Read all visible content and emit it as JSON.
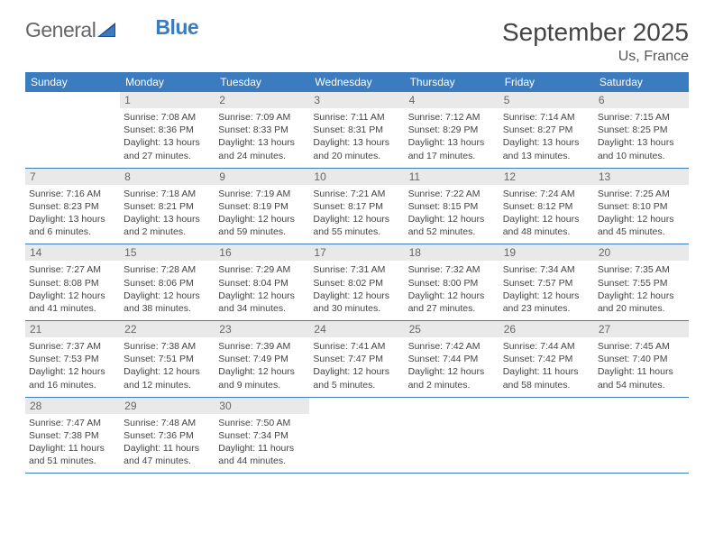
{
  "logo": {
    "part1": "General",
    "part2": "Blue"
  },
  "month_title": "September 2025",
  "location": "Us, France",
  "colors": {
    "header_bg": "#3b7bbf",
    "header_text": "#ffffff",
    "daynum_bg": "#e9e9e9",
    "daynum_text": "#666666",
    "row_border": "#3b7bbf",
    "body_text": "#444444",
    "background": "#ffffff"
  },
  "weekday_labels": [
    "Sunday",
    "Monday",
    "Tuesday",
    "Wednesday",
    "Thursday",
    "Friday",
    "Saturday"
  ],
  "weeks": [
    [
      {
        "blank": true
      },
      {
        "day": "1",
        "sunrise": "Sunrise: 7:08 AM",
        "sunset": "Sunset: 8:36 PM",
        "daylight1": "Daylight: 13 hours",
        "daylight2": "and 27 minutes."
      },
      {
        "day": "2",
        "sunrise": "Sunrise: 7:09 AM",
        "sunset": "Sunset: 8:33 PM",
        "daylight1": "Daylight: 13 hours",
        "daylight2": "and 24 minutes."
      },
      {
        "day": "3",
        "sunrise": "Sunrise: 7:11 AM",
        "sunset": "Sunset: 8:31 PM",
        "daylight1": "Daylight: 13 hours",
        "daylight2": "and 20 minutes."
      },
      {
        "day": "4",
        "sunrise": "Sunrise: 7:12 AM",
        "sunset": "Sunset: 8:29 PM",
        "daylight1": "Daylight: 13 hours",
        "daylight2": "and 17 minutes."
      },
      {
        "day": "5",
        "sunrise": "Sunrise: 7:14 AM",
        "sunset": "Sunset: 8:27 PM",
        "daylight1": "Daylight: 13 hours",
        "daylight2": "and 13 minutes."
      },
      {
        "day": "6",
        "sunrise": "Sunrise: 7:15 AM",
        "sunset": "Sunset: 8:25 PM",
        "daylight1": "Daylight: 13 hours",
        "daylight2": "and 10 minutes."
      }
    ],
    [
      {
        "day": "7",
        "sunrise": "Sunrise: 7:16 AM",
        "sunset": "Sunset: 8:23 PM",
        "daylight1": "Daylight: 13 hours",
        "daylight2": "and 6 minutes."
      },
      {
        "day": "8",
        "sunrise": "Sunrise: 7:18 AM",
        "sunset": "Sunset: 8:21 PM",
        "daylight1": "Daylight: 13 hours",
        "daylight2": "and 2 minutes."
      },
      {
        "day": "9",
        "sunrise": "Sunrise: 7:19 AM",
        "sunset": "Sunset: 8:19 PM",
        "daylight1": "Daylight: 12 hours",
        "daylight2": "and 59 minutes."
      },
      {
        "day": "10",
        "sunrise": "Sunrise: 7:21 AM",
        "sunset": "Sunset: 8:17 PM",
        "daylight1": "Daylight: 12 hours",
        "daylight2": "and 55 minutes."
      },
      {
        "day": "11",
        "sunrise": "Sunrise: 7:22 AM",
        "sunset": "Sunset: 8:15 PM",
        "daylight1": "Daylight: 12 hours",
        "daylight2": "and 52 minutes."
      },
      {
        "day": "12",
        "sunrise": "Sunrise: 7:24 AM",
        "sunset": "Sunset: 8:12 PM",
        "daylight1": "Daylight: 12 hours",
        "daylight2": "and 48 minutes."
      },
      {
        "day": "13",
        "sunrise": "Sunrise: 7:25 AM",
        "sunset": "Sunset: 8:10 PM",
        "daylight1": "Daylight: 12 hours",
        "daylight2": "and 45 minutes."
      }
    ],
    [
      {
        "day": "14",
        "sunrise": "Sunrise: 7:27 AM",
        "sunset": "Sunset: 8:08 PM",
        "daylight1": "Daylight: 12 hours",
        "daylight2": "and 41 minutes."
      },
      {
        "day": "15",
        "sunrise": "Sunrise: 7:28 AM",
        "sunset": "Sunset: 8:06 PM",
        "daylight1": "Daylight: 12 hours",
        "daylight2": "and 38 minutes."
      },
      {
        "day": "16",
        "sunrise": "Sunrise: 7:29 AM",
        "sunset": "Sunset: 8:04 PM",
        "daylight1": "Daylight: 12 hours",
        "daylight2": "and 34 minutes."
      },
      {
        "day": "17",
        "sunrise": "Sunrise: 7:31 AM",
        "sunset": "Sunset: 8:02 PM",
        "daylight1": "Daylight: 12 hours",
        "daylight2": "and 30 minutes."
      },
      {
        "day": "18",
        "sunrise": "Sunrise: 7:32 AM",
        "sunset": "Sunset: 8:00 PM",
        "daylight1": "Daylight: 12 hours",
        "daylight2": "and 27 minutes."
      },
      {
        "day": "19",
        "sunrise": "Sunrise: 7:34 AM",
        "sunset": "Sunset: 7:57 PM",
        "daylight1": "Daylight: 12 hours",
        "daylight2": "and 23 minutes."
      },
      {
        "day": "20",
        "sunrise": "Sunrise: 7:35 AM",
        "sunset": "Sunset: 7:55 PM",
        "daylight1": "Daylight: 12 hours",
        "daylight2": "and 20 minutes."
      }
    ],
    [
      {
        "day": "21",
        "sunrise": "Sunrise: 7:37 AM",
        "sunset": "Sunset: 7:53 PM",
        "daylight1": "Daylight: 12 hours",
        "daylight2": "and 16 minutes."
      },
      {
        "day": "22",
        "sunrise": "Sunrise: 7:38 AM",
        "sunset": "Sunset: 7:51 PM",
        "daylight1": "Daylight: 12 hours",
        "daylight2": "and 12 minutes."
      },
      {
        "day": "23",
        "sunrise": "Sunrise: 7:39 AM",
        "sunset": "Sunset: 7:49 PM",
        "daylight1": "Daylight: 12 hours",
        "daylight2": "and 9 minutes."
      },
      {
        "day": "24",
        "sunrise": "Sunrise: 7:41 AM",
        "sunset": "Sunset: 7:47 PM",
        "daylight1": "Daylight: 12 hours",
        "daylight2": "and 5 minutes."
      },
      {
        "day": "25",
        "sunrise": "Sunrise: 7:42 AM",
        "sunset": "Sunset: 7:44 PM",
        "daylight1": "Daylight: 12 hours",
        "daylight2": "and 2 minutes."
      },
      {
        "day": "26",
        "sunrise": "Sunrise: 7:44 AM",
        "sunset": "Sunset: 7:42 PM",
        "daylight1": "Daylight: 11 hours",
        "daylight2": "and 58 minutes."
      },
      {
        "day": "27",
        "sunrise": "Sunrise: 7:45 AM",
        "sunset": "Sunset: 7:40 PM",
        "daylight1": "Daylight: 11 hours",
        "daylight2": "and 54 minutes."
      }
    ],
    [
      {
        "day": "28",
        "sunrise": "Sunrise: 7:47 AM",
        "sunset": "Sunset: 7:38 PM",
        "daylight1": "Daylight: 11 hours",
        "daylight2": "and 51 minutes."
      },
      {
        "day": "29",
        "sunrise": "Sunrise: 7:48 AM",
        "sunset": "Sunset: 7:36 PM",
        "daylight1": "Daylight: 11 hours",
        "daylight2": "and 47 minutes."
      },
      {
        "day": "30",
        "sunrise": "Sunrise: 7:50 AM",
        "sunset": "Sunset: 7:34 PM",
        "daylight1": "Daylight: 11 hours",
        "daylight2": "and 44 minutes."
      },
      {
        "blank": true
      },
      {
        "blank": true
      },
      {
        "blank": true
      },
      {
        "blank": true
      }
    ]
  ]
}
